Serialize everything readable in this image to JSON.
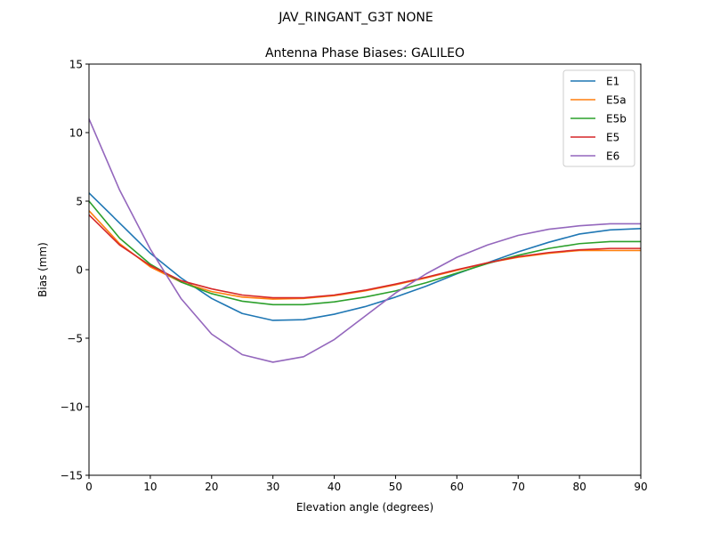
{
  "chart_data": {
    "type": "line",
    "suptitle": "JAV_RINGANT_G3T NONE",
    "title": "Antenna Phase Biases: GALILEO",
    "xlabel": "Elevation angle (degrees)",
    "ylabel": "Bias (mm)",
    "xlim": [
      0,
      90
    ],
    "ylim": [
      -15,
      15
    ],
    "xticks": [
      0,
      10,
      20,
      30,
      40,
      50,
      60,
      70,
      80,
      90
    ],
    "yticks": [
      -15,
      -10,
      -5,
      0,
      5,
      10,
      15
    ],
    "xtick_labels": [
      "0",
      "10",
      "20",
      "30",
      "40",
      "50",
      "60",
      "70",
      "80",
      "90"
    ],
    "ytick_labels": [
      "−15",
      "−10",
      "−5",
      "0",
      "5",
      "10",
      "15"
    ],
    "grid": false,
    "legend_position": "top-right",
    "x": [
      0,
      5,
      10,
      15,
      20,
      25,
      30,
      35,
      40,
      45,
      50,
      55,
      60,
      65,
      70,
      75,
      80,
      85,
      90
    ],
    "series": [
      {
        "name": "E1",
        "color": "#1f77b4",
        "values": [
          5.6,
          3.4,
          1.2,
          -0.6,
          -2.1,
          -3.2,
          -3.7,
          -3.65,
          -3.25,
          -2.7,
          -2.0,
          -1.2,
          -0.3,
          0.5,
          1.3,
          2.0,
          2.6,
          2.9,
          3.0
        ]
      },
      {
        "name": "E5a",
        "color": "#ff7f0e",
        "values": [
          4.3,
          1.9,
          0.2,
          -0.9,
          -1.6,
          -2.0,
          -2.15,
          -2.1,
          -1.9,
          -1.55,
          -1.1,
          -0.6,
          -0.05,
          0.5,
          0.9,
          1.2,
          1.4,
          1.4,
          1.4
        ]
      },
      {
        "name": "E5b",
        "color": "#2ca02c",
        "values": [
          5.0,
          2.3,
          0.4,
          -0.9,
          -1.75,
          -2.3,
          -2.55,
          -2.55,
          -2.35,
          -2.0,
          -1.55,
          -0.95,
          -0.25,
          0.45,
          1.05,
          1.55,
          1.9,
          2.05,
          2.05
        ]
      },
      {
        "name": "E5",
        "color": "#d62728",
        "values": [
          4.0,
          1.8,
          0.3,
          -0.8,
          -1.4,
          -1.85,
          -2.05,
          -2.05,
          -1.85,
          -1.5,
          -1.05,
          -0.55,
          0.0,
          0.5,
          0.95,
          1.25,
          1.45,
          1.55,
          1.55
        ]
      },
      {
        "name": "E6",
        "color": "#9467bd",
        "values": [
          11.0,
          5.8,
          1.5,
          -2.1,
          -4.7,
          -6.2,
          -6.75,
          -6.35,
          -5.1,
          -3.4,
          -1.7,
          -0.3,
          0.9,
          1.8,
          2.5,
          2.95,
          3.2,
          3.35,
          3.35
        ]
      }
    ]
  }
}
